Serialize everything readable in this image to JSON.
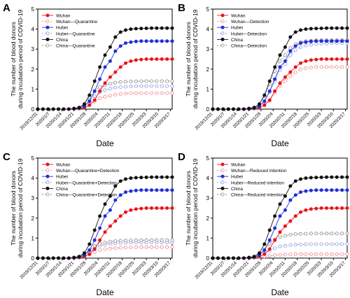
{
  "chart_data": [
    {
      "type": "line",
      "panel_label": "A",
      "xlabel": "Date",
      "ylabel": "The number of blood donors during incubation period of COVID-19",
      "x": [
        "2019/12/31",
        "2020/1/3",
        "2020/1/6",
        "2020/1/9",
        "2020/1/12",
        "2020/1/15",
        "2020/1/18",
        "2020/1/21",
        "2020/1/24",
        "2020/1/27",
        "2020/1/30",
        "2020/2/2",
        "2020/2/5",
        "2020/2/8",
        "2020/2/11",
        "2020/2/14",
        "2020/2/17",
        "2020/2/20",
        "2020/2/23",
        "2020/2/26",
        "2020/2/29",
        "2020/3/3",
        "2020/3/6",
        "2020/3/9",
        "2020/3/12",
        "2020/3/15",
        "2020/3/18"
      ],
      "xticks": [
        "2019/12/31",
        "2020/1/7",
        "2020/1/14",
        "2020/1/21",
        "2020/1/28",
        "2020/2/4",
        "2020/2/11",
        "2020/2/18",
        "2020/2/25",
        "2020/3/3",
        "2020/3/10",
        "2020/3/17"
      ],
      "ylim": [
        0,
        5
      ],
      "yticks": [
        0,
        1,
        2,
        3,
        4,
        5
      ],
      "series": [
        {
          "name": "Wuhan",
          "values": [
            0,
            0,
            0,
            0,
            0,
            0,
            0,
            0.01,
            0.03,
            0.08,
            0.2,
            0.45,
            0.9,
            1.3,
            1.6,
            1.85,
            2.1,
            2.3,
            2.4,
            2.45,
            2.48,
            2.5,
            2.5,
            2.5,
            2.5,
            2.5,
            2.5
          ]
        },
        {
          "name": "Wuhan—Quarantine",
          "values": [
            0,
            0,
            0,
            0,
            0,
            0,
            0,
            0.01,
            0.03,
            0.08,
            0.2,
            0.38,
            0.55,
            0.62,
            0.68,
            0.72,
            0.76,
            0.78,
            0.8,
            0.8,
            0.8,
            0.8,
            0.8,
            0.8,
            0.8,
            0.8,
            0.8
          ]
        },
        {
          "name": "Hubei",
          "values": [
            0,
            0,
            0,
            0,
            0,
            0,
            0,
            0.02,
            0.05,
            0.15,
            0.4,
            0.9,
            1.5,
            2.1,
            2.4,
            2.9,
            3.15,
            3.3,
            3.35,
            3.38,
            3.4,
            3.4,
            3.4,
            3.4,
            3.4,
            3.4,
            3.4
          ]
        },
        {
          "name": "Hubei—Quarantine",
          "values": [
            0,
            0,
            0,
            0,
            0,
            0,
            0,
            0.02,
            0.05,
            0.15,
            0.38,
            0.65,
            0.85,
            0.95,
            1.02,
            1.08,
            1.1,
            1.12,
            1.14,
            1.15,
            1.15,
            1.15,
            1.15,
            1.15,
            1.15,
            1.15,
            1.15
          ]
        },
        {
          "name": "China",
          "values": [
            0,
            0,
            0,
            0,
            0,
            0,
            0,
            0.03,
            0.08,
            0.25,
            0.7,
            1.4,
            2.1,
            2.7,
            3.1,
            3.6,
            3.85,
            3.95,
            4.0,
            4.02,
            4.03,
            4.04,
            4.05,
            4.05,
            4.05,
            4.05,
            4.05
          ]
        },
        {
          "name": "China—Quarantine",
          "values": [
            0,
            0,
            0,
            0,
            0,
            0,
            0,
            0.03,
            0.08,
            0.25,
            0.6,
            0.9,
            1.1,
            1.2,
            1.27,
            1.32,
            1.35,
            1.37,
            1.38,
            1.39,
            1.4,
            1.4,
            1.4,
            1.4,
            1.4,
            1.4,
            1.4
          ]
        }
      ]
    },
    {
      "type": "line",
      "panel_label": "B",
      "xlabel": "Date",
      "ylabel": "The number of blood donors during incubation period of COVID-19",
      "x": [
        "2019/12/31",
        "2020/1/3",
        "2020/1/6",
        "2020/1/9",
        "2020/1/12",
        "2020/1/15",
        "2020/1/18",
        "2020/1/21",
        "2020/1/24",
        "2020/1/27",
        "2020/1/30",
        "2020/2/2",
        "2020/2/5",
        "2020/2/8",
        "2020/2/11",
        "2020/2/14",
        "2020/2/17",
        "2020/2/20",
        "2020/2/23",
        "2020/2/26",
        "2020/2/29",
        "2020/3/3",
        "2020/3/6",
        "2020/3/9",
        "2020/3/12",
        "2020/3/15",
        "2020/3/18"
      ],
      "xticks": [
        "2019/12/31",
        "2020/1/7",
        "2020/1/14",
        "2020/1/21",
        "2020/1/28",
        "2020/2/4",
        "2020/2/11",
        "2020/2/18",
        "2020/2/25",
        "2020/3/3",
        "2020/3/10",
        "2020/3/17"
      ],
      "ylim": [
        0,
        5
      ],
      "yticks": [
        0,
        1,
        2,
        3,
        4,
        5
      ],
      "series": [
        {
          "name": "Wuhan",
          "values": [
            0,
            0,
            0,
            0,
            0,
            0,
            0,
            0.01,
            0.03,
            0.08,
            0.2,
            0.45,
            0.9,
            1.3,
            1.6,
            1.85,
            2.1,
            2.3,
            2.4,
            2.45,
            2.48,
            2.5,
            2.5,
            2.5,
            2.5,
            2.5,
            2.5
          ]
        },
        {
          "name": "Wuhan—Detection",
          "values": [
            0,
            0,
            0,
            0,
            0,
            0,
            0,
            0.01,
            0.03,
            0.08,
            0.2,
            0.42,
            0.8,
            1.15,
            1.4,
            1.65,
            1.85,
            1.98,
            2.05,
            2.08,
            2.1,
            2.1,
            2.1,
            2.1,
            2.1,
            2.1,
            2.1
          ]
        },
        {
          "name": "Hubei",
          "values": [
            0,
            0,
            0,
            0,
            0,
            0,
            0,
            0.02,
            0.05,
            0.15,
            0.4,
            0.9,
            1.5,
            2.1,
            2.4,
            2.9,
            3.15,
            3.3,
            3.35,
            3.38,
            3.4,
            3.4,
            3.4,
            3.4,
            3.4,
            3.4,
            3.4
          ]
        },
        {
          "name": "Hubei—Detection",
          "values": [
            0,
            0,
            0,
            0,
            0,
            0,
            0,
            0.02,
            0.05,
            0.15,
            0.38,
            0.85,
            1.4,
            1.95,
            2.25,
            2.7,
            2.95,
            3.1,
            3.18,
            3.22,
            3.25,
            3.27,
            3.28,
            3.3,
            3.3,
            3.3,
            3.3
          ]
        },
        {
          "name": "China",
          "values": [
            0,
            0,
            0,
            0,
            0,
            0,
            0,
            0.03,
            0.08,
            0.25,
            0.7,
            1.4,
            2.1,
            2.7,
            3.1,
            3.6,
            3.85,
            3.95,
            4.0,
            4.02,
            4.03,
            4.04,
            4.05,
            4.05,
            4.05,
            4.05,
            4.05
          ]
        },
        {
          "name": "China—Detection",
          "values": [
            0,
            0,
            0,
            0,
            0,
            0,
            0,
            0.03,
            0.08,
            0.25,
            0.65,
            1.25,
            1.9,
            2.4,
            2.7,
            3.05,
            3.25,
            3.35,
            3.4,
            3.42,
            3.44,
            3.45,
            3.45,
            3.45,
            3.45,
            3.45,
            3.45
          ]
        }
      ]
    },
    {
      "type": "line",
      "panel_label": "C",
      "xlabel": "Date",
      "ylabel": "The number of blood donors during incubation period of COVID-19",
      "x": [
        "2019/12/31",
        "2020/1/3",
        "2020/1/6",
        "2020/1/9",
        "2020/1/12",
        "2020/1/15",
        "2020/1/18",
        "2020/1/21",
        "2020/1/24",
        "2020/1/27",
        "2020/1/30",
        "2020/2/2",
        "2020/2/5",
        "2020/2/8",
        "2020/2/11",
        "2020/2/14",
        "2020/2/17",
        "2020/2/20",
        "2020/2/23",
        "2020/2/26",
        "2020/2/29",
        "2020/3/3",
        "2020/3/6",
        "2020/3/9",
        "2020/3/12",
        "2020/3/15",
        "2020/3/18"
      ],
      "xticks": [
        "2019/12/31",
        "2020/1/7",
        "2020/1/14",
        "2020/1/21",
        "2020/1/28",
        "2020/2/4",
        "2020/2/11",
        "2020/2/18",
        "2020/2/25",
        "2020/3/3",
        "2020/3/10",
        "2020/3/17"
      ],
      "ylim": [
        0,
        5
      ],
      "yticks": [
        0,
        1,
        2,
        3,
        4,
        5
      ],
      "series": [
        {
          "name": "Wuhan",
          "values": [
            0,
            0,
            0,
            0,
            0,
            0,
            0,
            0.01,
            0.03,
            0.08,
            0.2,
            0.45,
            0.9,
            1.3,
            1.6,
            1.85,
            2.1,
            2.3,
            2.4,
            2.45,
            2.48,
            2.5,
            2.5,
            2.5,
            2.5,
            2.5,
            2.5
          ]
        },
        {
          "name": "Wuhan—Quarantine+Detection",
          "values": [
            0,
            0,
            0,
            0,
            0,
            0,
            0,
            0.01,
            0.03,
            0.07,
            0.18,
            0.3,
            0.4,
            0.45,
            0.48,
            0.5,
            0.52,
            0.53,
            0.54,
            0.55,
            0.55,
            0.55,
            0.55,
            0.55,
            0.55,
            0.55,
            0.55
          ]
        },
        {
          "name": "Hubei",
          "values": [
            0,
            0,
            0,
            0,
            0,
            0,
            0,
            0.02,
            0.05,
            0.15,
            0.4,
            0.9,
            1.5,
            2.1,
            2.4,
            2.9,
            3.15,
            3.3,
            3.35,
            3.38,
            3.4,
            3.4,
            3.4,
            3.4,
            3.4,
            3.4,
            3.4
          ]
        },
        {
          "name": "Hubei—Quarantine+Detection",
          "values": [
            0,
            0,
            0,
            0,
            0,
            0,
            0,
            0.02,
            0.05,
            0.14,
            0.3,
            0.5,
            0.62,
            0.68,
            0.72,
            0.74,
            0.76,
            0.77,
            0.78,
            0.78,
            0.78,
            0.78,
            0.78,
            0.78,
            0.78,
            0.78,
            0.78
          ]
        },
        {
          "name": "China",
          "values": [
            0,
            0,
            0,
            0,
            0,
            0,
            0,
            0.03,
            0.08,
            0.25,
            0.7,
            1.4,
            2.1,
            2.7,
            3.1,
            3.6,
            3.85,
            3.95,
            4.0,
            4.02,
            4.03,
            4.04,
            4.05,
            4.05,
            4.05,
            4.05,
            4.05
          ]
        },
        {
          "name": "China—Quarantine+Detection",
          "values": [
            0,
            0,
            0,
            0,
            0,
            0,
            0,
            0.03,
            0.07,
            0.2,
            0.4,
            0.6,
            0.72,
            0.78,
            0.82,
            0.85,
            0.87,
            0.88,
            0.89,
            0.9,
            0.9,
            0.9,
            0.9,
            0.9,
            0.9,
            0.9,
            0.9
          ]
        }
      ]
    },
    {
      "type": "line",
      "panel_label": "D",
      "xlabel": "Date",
      "ylabel": "The number of blood donors during incubation period of COVID-19",
      "x": [
        "2019/12/31",
        "2020/1/3",
        "2020/1/6",
        "2020/1/9",
        "2020/1/12",
        "2020/1/15",
        "2020/1/18",
        "2020/1/21",
        "2020/1/24",
        "2020/1/27",
        "2020/1/30",
        "2020/2/2",
        "2020/2/5",
        "2020/2/8",
        "2020/2/11",
        "2020/2/14",
        "2020/2/17",
        "2020/2/20",
        "2020/2/23",
        "2020/2/26",
        "2020/2/29",
        "2020/3/3",
        "2020/3/6",
        "2020/3/9",
        "2020/3/12",
        "2020/3/15",
        "2020/3/18"
      ],
      "xticks": [
        "2019/12/31",
        "2020/1/7",
        "2020/1/14",
        "2020/1/21",
        "2020/1/28",
        "2020/2/4",
        "2020/2/11",
        "2020/2/18",
        "2020/2/25",
        "2020/3/3",
        "2020/3/10",
        "2020/3/17"
      ],
      "ylim": [
        0,
        5
      ],
      "yticks": [
        0,
        1,
        2,
        3,
        4,
        5
      ],
      "series": [
        {
          "name": "Wuhan",
          "values": [
            0,
            0,
            0,
            0,
            0,
            0,
            0,
            0.01,
            0.03,
            0.08,
            0.2,
            0.45,
            0.9,
            1.3,
            1.6,
            1.85,
            2.1,
            2.3,
            2.4,
            2.45,
            2.48,
            2.5,
            2.5,
            2.5,
            2.5,
            2.5,
            2.5
          ]
        },
        {
          "name": "Wuhan—Reduced intention",
          "values": [
            0,
            0,
            0,
            0,
            0,
            0,
            0,
            0.01,
            0.02,
            0.04,
            0.08,
            0.12,
            0.15,
            0.17,
            0.18,
            0.19,
            0.2,
            0.2,
            0.2,
            0.2,
            0.2,
            0.2,
            0.2,
            0.2,
            0.2,
            0.2,
            0.2
          ]
        },
        {
          "name": "Hubei",
          "values": [
            0,
            0,
            0,
            0,
            0,
            0,
            0,
            0.02,
            0.05,
            0.15,
            0.4,
            0.9,
            1.5,
            2.1,
            2.4,
            2.9,
            3.15,
            3.3,
            3.35,
            3.38,
            3.4,
            3.4,
            3.4,
            3.4,
            3.4,
            3.4,
            3.4
          ]
        },
        {
          "name": "Hubei—Reduced intention",
          "values": [
            0,
            0,
            0,
            0,
            0,
            0,
            0,
            0.02,
            0.04,
            0.1,
            0.22,
            0.38,
            0.5,
            0.58,
            0.62,
            0.65,
            0.67,
            0.68,
            0.69,
            0.7,
            0.7,
            0.7,
            0.7,
            0.7,
            0.7,
            0.7,
            0.7
          ]
        },
        {
          "name": "China",
          "values": [
            0,
            0,
            0,
            0,
            0,
            0,
            0,
            0.03,
            0.08,
            0.25,
            0.7,
            1.4,
            2.1,
            2.7,
            3.1,
            3.6,
            3.85,
            3.95,
            4.0,
            4.02,
            4.03,
            4.04,
            4.05,
            4.05,
            4.05,
            4.05,
            4.05
          ]
        },
        {
          "name": "China—Reduced intention",
          "values": [
            0,
            0,
            0,
            0,
            0,
            0,
            0,
            0.03,
            0.06,
            0.18,
            0.42,
            0.72,
            0.92,
            1.05,
            1.12,
            1.17,
            1.2,
            1.21,
            1.22,
            1.23,
            1.23,
            1.23,
            1.23,
            1.23,
            1.23,
            1.23,
            1.23
          ]
        }
      ]
    }
  ]
}
